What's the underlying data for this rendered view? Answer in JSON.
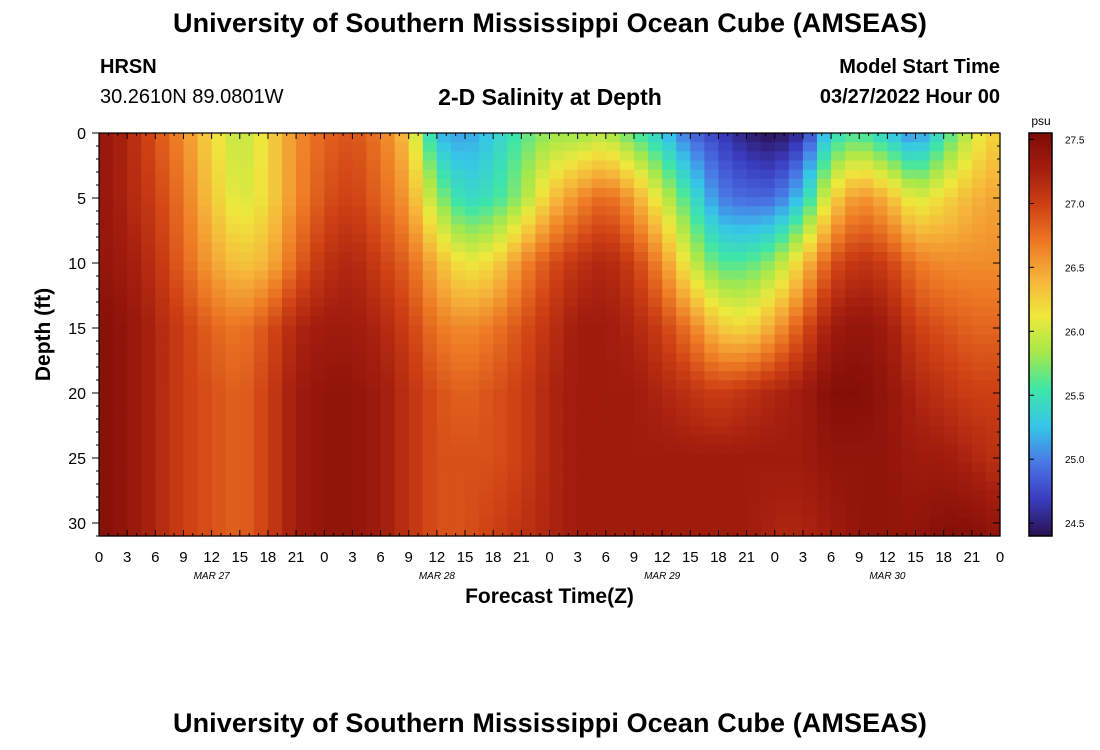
{
  "header": {
    "title": "University of Southern Mississippi Ocean Cube (AMSEAS)",
    "station": "HRSN",
    "coords": "30.2610N  89.0801W",
    "chart_title": "2-D Salinity at Depth",
    "model_label": "Model Start Time",
    "model_date": "03/27/2022 Hour 00"
  },
  "footer": {
    "title": "University of Southern Mississippi Ocean Cube (AMSEAS)"
  },
  "colors": {
    "palette": [
      "#2a1050",
      "#3a3cbf",
      "#4a78e6",
      "#36c6e8",
      "#3ee6a8",
      "#a6e84a",
      "#efe83c",
      "#f6b43a",
      "#ee7a24",
      "#cf4214",
      "#a41e0e",
      "#7e0c06"
    ]
  },
  "chart_data": {
    "type": "heatmap",
    "title": "2-D Salinity at Depth",
    "xlabel": "Forecast Time(Z)",
    "ylabel": "Depth (ft)",
    "colorbar_label": "psu",
    "xlim": [
      0,
      96
    ],
    "ylim": [
      0,
      31
    ],
    "y_inverted": true,
    "x_ticks": [
      0,
      3,
      6,
      9,
      12,
      15,
      18,
      21,
      24,
      27,
      30,
      33,
      36,
      39,
      42,
      45,
      48,
      51,
      54,
      57,
      60,
      63,
      66,
      69,
      72,
      75,
      78,
      81,
      84,
      87,
      90,
      93,
      96
    ],
    "x_tick_labels": [
      "0",
      "3",
      "6",
      "9",
      "12",
      "15",
      "18",
      "21",
      "0",
      "3",
      "6",
      "9",
      "12",
      "15",
      "18",
      "21",
      "0",
      "3",
      "6",
      "9",
      "12",
      "15",
      "18",
      "21",
      "0",
      "3",
      "6",
      "9",
      "12",
      "15",
      "18",
      "21",
      "0"
    ],
    "y_ticks": [
      0,
      5,
      10,
      15,
      20,
      25,
      30
    ],
    "y_tick_labels": [
      "0",
      "5",
      "10",
      "15",
      "20",
      "25",
      "30"
    ],
    "day_labels": [
      {
        "x": 12,
        "label": "MAR 27"
      },
      {
        "x": 36,
        "label": "MAR 28"
      },
      {
        "x": 60,
        "label": "MAR 29"
      },
      {
        "x": 84,
        "label": "MAR 30"
      }
    ],
    "colorbar_range": [
      24.4,
      27.55
    ],
    "colorbar_ticks": [
      24.5,
      25.0,
      25.5,
      26.0,
      26.5,
      27.0,
      27.5
    ],
    "colorbar_tick_labels": [
      "24.5",
      "25.0",
      "25.5",
      "26.0",
      "26.5",
      "27.0",
      "27.5"
    ],
    "depths_ft": [
      0,
      5,
      10,
      15,
      20,
      25,
      31
    ],
    "times_h": [
      0,
      3,
      6,
      9,
      12,
      15,
      18,
      21,
      24,
      27,
      30,
      33,
      36,
      39,
      42,
      45,
      48,
      51,
      54,
      57,
      60,
      63,
      66,
      69,
      72,
      75,
      78,
      81,
      84,
      87,
      90,
      93,
      96
    ],
    "salinity_psu": [
      [
        27.4,
        27.2,
        26.9,
        26.6,
        26.2,
        25.9,
        26.2,
        26.6,
        26.8,
        26.9,
        26.7,
        26.3,
        25.2,
        25.1,
        25.3,
        25.6,
        25.8,
        25.8,
        25.9,
        25.6,
        25.3,
        24.9,
        24.7,
        24.5,
        24.4,
        24.6,
        25.4,
        25.6,
        25.3,
        25.0,
        25.5,
        26.0,
        26.3
      ],
      [
        27.4,
        27.2,
        27.0,
        26.7,
        26.3,
        26.0,
        26.2,
        26.6,
        26.9,
        27.0,
        26.8,
        26.5,
        25.8,
        25.4,
        25.5,
        25.8,
        26.3,
        26.6,
        26.8,
        26.5,
        26.0,
        25.5,
        25.0,
        24.9,
        24.9,
        25.3,
        26.2,
        26.6,
        26.4,
        26.0,
        26.2,
        26.4,
        26.5
      ],
      [
        27.4,
        27.3,
        27.1,
        26.8,
        26.5,
        26.3,
        26.4,
        26.8,
        27.1,
        27.2,
        27.0,
        26.8,
        26.4,
        26.1,
        26.2,
        26.6,
        26.9,
        27.1,
        27.2,
        27.0,
        26.6,
        26.0,
        25.6,
        25.6,
        25.8,
        26.3,
        26.9,
        27.1,
        27.0,
        26.7,
        26.6,
        26.6,
        26.6
      ],
      [
        27.5,
        27.4,
        27.2,
        27.0,
        26.8,
        26.7,
        26.9,
        27.2,
        27.3,
        27.3,
        27.2,
        27.0,
        26.7,
        26.6,
        26.7,
        26.9,
        27.1,
        27.3,
        27.3,
        27.2,
        27.0,
        26.7,
        26.3,
        26.2,
        26.5,
        26.9,
        27.3,
        27.4,
        27.3,
        27.0,
        26.9,
        26.8,
        26.8
      ],
      [
        27.5,
        27.4,
        27.2,
        27.0,
        26.9,
        26.8,
        27.0,
        27.3,
        27.4,
        27.4,
        27.3,
        27.1,
        26.9,
        26.8,
        26.9,
        27.0,
        27.2,
        27.3,
        27.3,
        27.3,
        27.2,
        27.1,
        27.0,
        27.1,
        27.2,
        27.3,
        27.5,
        27.5,
        27.4,
        27.2,
        27.1,
        27.0,
        27.0
      ],
      [
        27.5,
        27.4,
        27.2,
        27.0,
        26.9,
        26.8,
        27.0,
        27.3,
        27.4,
        27.4,
        27.3,
        27.1,
        26.9,
        26.9,
        26.9,
        27.0,
        27.2,
        27.3,
        27.3,
        27.3,
        27.3,
        27.3,
        27.3,
        27.3,
        27.3,
        27.3,
        27.4,
        27.4,
        27.4,
        27.3,
        27.3,
        27.2,
        27.1
      ],
      [
        27.5,
        27.4,
        27.2,
        27.0,
        26.9,
        26.8,
        27.0,
        27.3,
        27.4,
        27.4,
        27.3,
        27.1,
        26.9,
        26.9,
        27.0,
        27.1,
        27.2,
        27.3,
        27.3,
        27.3,
        27.3,
        27.3,
        27.3,
        27.3,
        27.2,
        27.2,
        27.3,
        27.4,
        27.4,
        27.4,
        27.5,
        27.5,
        27.4
      ]
    ]
  }
}
